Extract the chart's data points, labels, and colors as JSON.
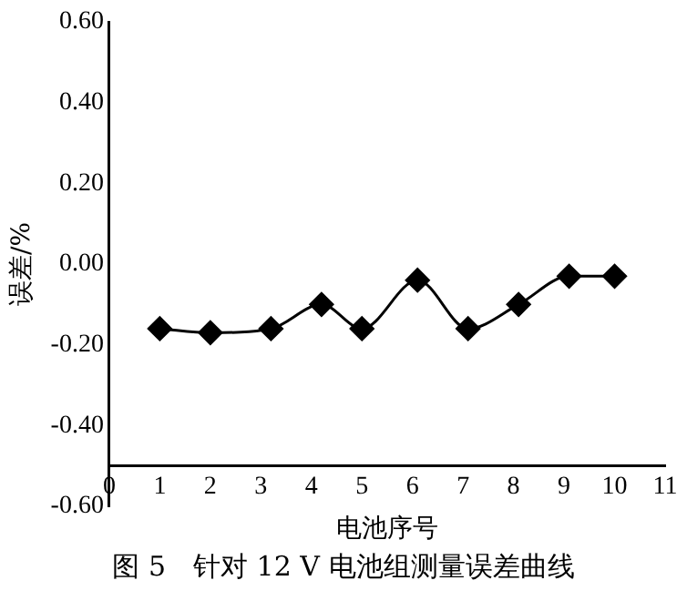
{
  "chart_data": {
    "type": "line",
    "xlabel": "电池序号",
    "ylabel": "误差/%",
    "x": [
      1,
      2,
      3.2,
      4.2,
      5,
      6.1,
      7.1,
      8.1,
      9.1,
      10
    ],
    "series": [
      {
        "color": "#000000",
        "values": [
          -0.16,
          -0.17,
          -0.16,
          -0.1,
          -0.16,
          -0.04,
          -0.16,
          -0.1,
          -0.03,
          -0.03
        ]
      }
    ],
    "xlim": [
      0,
      11
    ],
    "xticks": [
      0,
      1,
      2,
      3,
      4,
      5,
      6,
      7,
      8,
      9,
      10,
      11
    ],
    "ylim": [
      -0.6,
      0.6
    ],
    "yticks": [
      {
        "value": -0.6,
        "label": "-0.60"
      },
      {
        "value": -0.4,
        "label": "-0.40"
      },
      {
        "value": -0.2,
        "label": "-0.20"
      },
      {
        "value": 0,
        "label": "0.00"
      },
      {
        "value": 0.2,
        "label": "0.20"
      },
      {
        "value": 0.4,
        "label": "0.40"
      },
      {
        "value": 0.6,
        "label": "0.60"
      }
    ],
    "marker": "diamond",
    "line_style": "solid",
    "legend": false,
    "annotations": [
      "图 5　针对 12 V 电池组测量误差曲线"
    ]
  }
}
